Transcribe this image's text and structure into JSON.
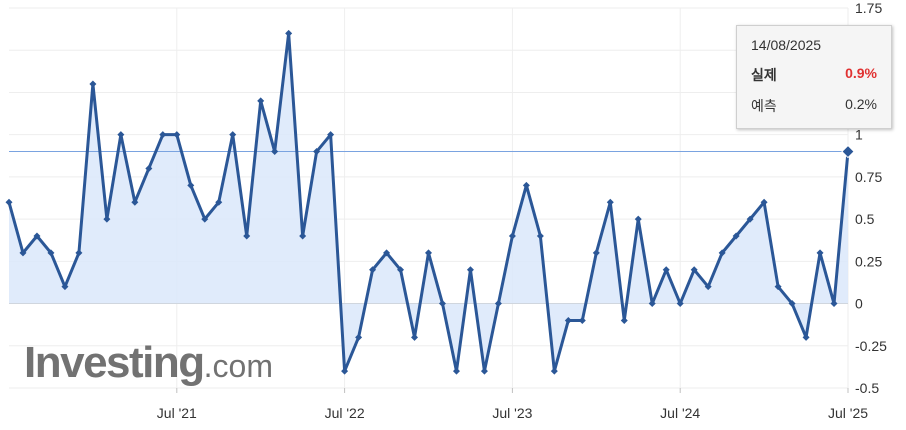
{
  "watermark": {
    "brand": "Investing",
    "suffix": ".com"
  },
  "tooltip": {
    "date": "14/08/2025",
    "actual_label": "실제",
    "actual_value": "0.9%",
    "forecast_label": "예측",
    "forecast_value": "0.2%"
  },
  "colors": {
    "line": "#2b5797",
    "fill": "#dbe7fa",
    "highlight_line": "#7aa3e0",
    "actual_value": "#e03131"
  },
  "chart_data": {
    "type": "area",
    "y_ticks": [
      "1.75",
      "1.5",
      "1.25",
      "1",
      "0.75",
      "0.5",
      "0.25",
      "0",
      "-0.25",
      "-0.5"
    ],
    "x_ticks": [
      "Jul '21",
      "Jul '22",
      "Jul '23",
      "Jul '24",
      "Jul '25"
    ],
    "x_tick_indices": [
      12,
      24,
      36,
      48,
      60
    ],
    "ylim": [
      -0.5,
      1.75
    ],
    "highlight_value": 0.9,
    "series": [
      {
        "values": [
          0.6,
          0.3,
          0.4,
          0.3,
          0.1,
          0.3,
          1.3,
          0.5,
          1.0,
          0.6,
          0.8,
          1.0,
          1.0,
          0.7,
          0.5,
          0.6,
          1.0,
          0.4,
          1.2,
          0.9,
          1.6,
          0.4,
          0.9,
          1.0,
          -0.4,
          -0.2,
          0.2,
          0.3,
          0.2,
          -0.2,
          0.3,
          0.0,
          -0.4,
          0.2,
          -0.4,
          0.0,
          0.4,
          0.7,
          0.4,
          -0.4,
          -0.1,
          -0.1,
          0.3,
          0.6,
          -0.1,
          0.5,
          0.0,
          0.2,
          0.0,
          0.2,
          0.1,
          0.3,
          0.4,
          0.5,
          0.6,
          0.1,
          0.0,
          -0.2,
          0.3,
          0.0,
          0.9
        ]
      }
    ]
  }
}
